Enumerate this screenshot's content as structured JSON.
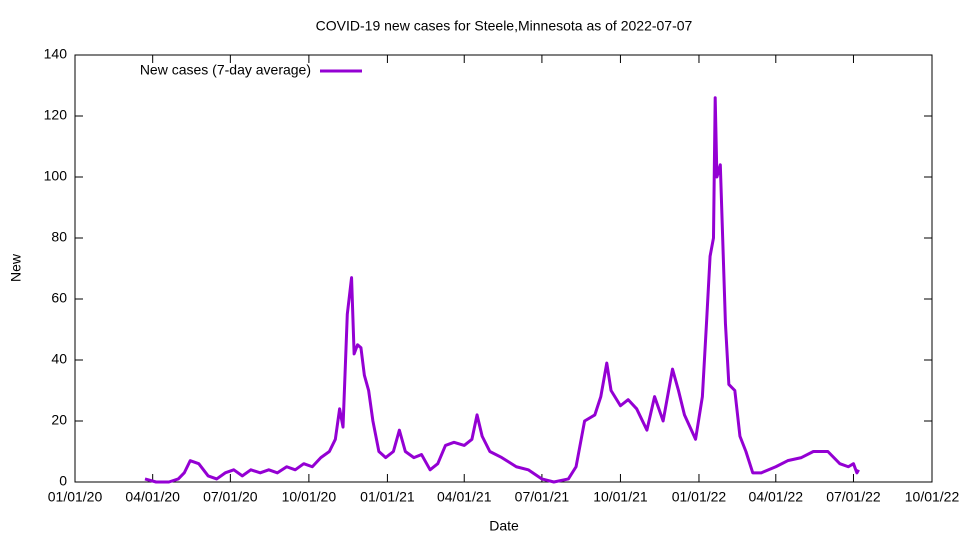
{
  "chart_data": {
    "type": "line",
    "title": "COVID-19 new cases for Steele,Minnesota as of 2022-07-07",
    "x_label": "Date",
    "y_label": "New",
    "legend": "top-left",
    "xlim": [
      "2020-01-01",
      "2022-10-01"
    ],
    "xticks": [
      {
        "value": "2020-01-01",
        "label": "01/01/20"
      },
      {
        "value": "2020-04-01",
        "label": "04/01/20"
      },
      {
        "value": "2020-07-01",
        "label": "07/01/20"
      },
      {
        "value": "2020-10-01",
        "label": "10/01/20"
      },
      {
        "value": "2021-01-01",
        "label": "01/01/21"
      },
      {
        "value": "2021-04-01",
        "label": "04/01/21"
      },
      {
        "value": "2021-07-01",
        "label": "07/01/21"
      },
      {
        "value": "2021-10-01",
        "label": "10/01/21"
      },
      {
        "value": "2022-01-01",
        "label": "01/01/22"
      },
      {
        "value": "2022-04-01",
        "label": "04/01/22"
      },
      {
        "value": "2022-07-01",
        "label": "07/01/22"
      },
      {
        "value": "2022-10-01",
        "label": "10/01/22"
      }
    ],
    "ylim": [
      0,
      140
    ],
    "yticks": [
      0,
      20,
      40,
      60,
      80,
      100,
      120,
      140
    ],
    "x": [
      "2020-03-23",
      "2020-04-05",
      "2020-04-20",
      "2020-05-01",
      "2020-05-08",
      "2020-05-15",
      "2020-05-25",
      "2020-06-05",
      "2020-06-15",
      "2020-06-25",
      "2020-07-05",
      "2020-07-15",
      "2020-07-25",
      "2020-08-05",
      "2020-08-15",
      "2020-08-25",
      "2020-09-05",
      "2020-09-15",
      "2020-09-25",
      "2020-10-05",
      "2020-10-15",
      "2020-10-25",
      "2020-11-01",
      "2020-11-06",
      "2020-11-10",
      "2020-11-15",
      "2020-11-20",
      "2020-11-23",
      "2020-11-27",
      "2020-12-01",
      "2020-12-05",
      "2020-12-10",
      "2020-12-15",
      "2020-12-22",
      "2020-12-30",
      "2021-01-08",
      "2021-01-15",
      "2021-01-22",
      "2021-02-01",
      "2021-02-10",
      "2021-02-20",
      "2021-03-01",
      "2021-03-10",
      "2021-03-20",
      "2021-04-01",
      "2021-04-10",
      "2021-04-16",
      "2021-04-22",
      "2021-05-01",
      "2021-05-15",
      "2021-06-01",
      "2021-06-15",
      "2021-07-01",
      "2021-07-15",
      "2021-08-01",
      "2021-08-10",
      "2021-08-20",
      "2021-09-01",
      "2021-09-08",
      "2021-09-15",
      "2021-09-20",
      "2021-10-01",
      "2021-10-10",
      "2021-10-20",
      "2021-11-01",
      "2021-11-10",
      "2021-11-20",
      "2021-12-01",
      "2021-12-08",
      "2021-12-15",
      "2021-12-28",
      "2022-01-05",
      "2022-01-10",
      "2022-01-14",
      "2022-01-18",
      "2022-01-20",
      "2022-01-22",
      "2022-01-26",
      "2022-02-01",
      "2022-02-05",
      "2022-02-12",
      "2022-02-18",
      "2022-02-25",
      "2022-03-05",
      "2022-03-15",
      "2022-04-01",
      "2022-04-15",
      "2022-05-01",
      "2022-05-15",
      "2022-06-01",
      "2022-06-15",
      "2022-06-25",
      "2022-07-01",
      "2022-07-05",
      "2022-07-07"
    ],
    "series": [
      {
        "name": "New cases (7-day average)",
        "color": "#9400d3",
        "values": [
          1,
          0,
          0,
          1,
          3,
          7,
          6,
          2,
          1,
          3,
          4,
          2,
          4,
          3,
          4,
          3,
          5,
          4,
          6,
          5,
          8,
          10,
          14,
          24,
          18,
          55,
          67,
          42,
          45,
          44,
          35,
          30,
          20,
          10,
          8,
          10,
          17,
          10,
          8,
          9,
          4,
          6,
          12,
          13,
          12,
          14,
          22,
          15,
          10,
          8,
          5,
          4,
          1,
          0,
          1,
          5,
          20,
          22,
          28,
          39,
          30,
          25,
          27,
          24,
          17,
          28,
          20,
          37,
          30,
          22,
          14,
          28,
          53,
          74,
          80,
          126,
          100,
          104,
          52,
          32,
          30,
          15,
          10,
          3,
          3,
          5,
          7,
          8,
          10,
          10,
          6,
          5,
          6,
          3,
          4
        ]
      }
    ]
  }
}
